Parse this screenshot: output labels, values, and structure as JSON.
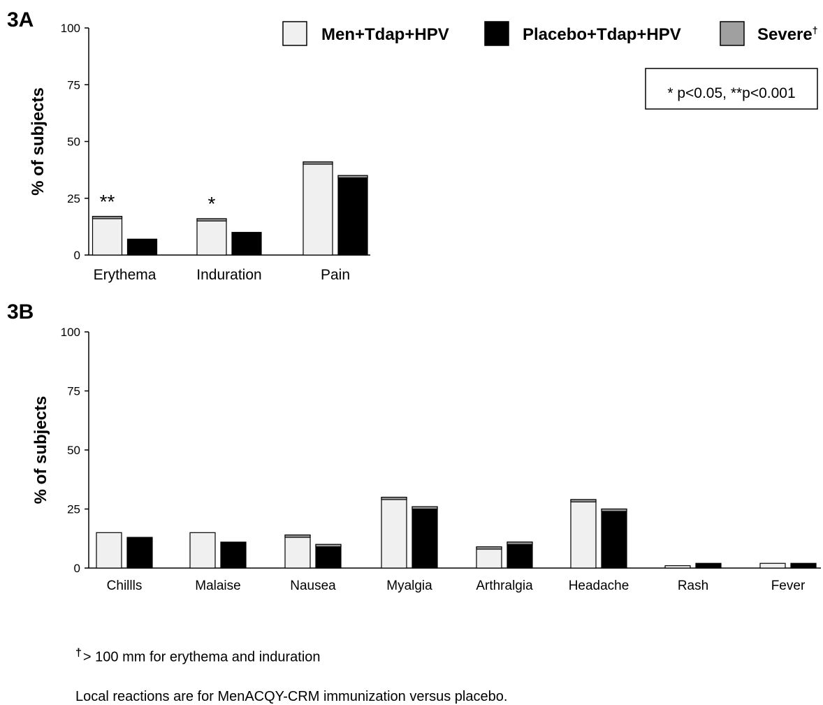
{
  "panels": {
    "a_label": "3A",
    "b_label": "3B"
  },
  "legend": {
    "items": [
      {
        "label": "Men+Tdap+HPV",
        "color": "#f0f0f0"
      },
      {
        "label": "Placebo+Tdap+HPV",
        "color": "#000000"
      },
      {
        "label": "Severe",
        "sup": "†",
        "color": "#a0a0a0"
      }
    ]
  },
  "significance_box": "* p<0.05, **p<0.001",
  "footnotes": {
    "dagger_symbol": "†",
    "dagger_text": "> 100 mm for erythema and induration",
    "local_note": "Local reactions are for MenACQY-CRM immunization versus placebo."
  },
  "colors": {
    "men": "#f0f0f0",
    "placebo": "#000000",
    "severe": "#a0a0a0"
  },
  "chart_data": [
    {
      "type": "bar",
      "panel": "3A",
      "categories": [
        "Erythema",
        "Induration",
        "Pain"
      ],
      "series": [
        {
          "name": "Men+Tdap+HPV",
          "values": [
            17,
            16,
            41
          ],
          "severe": [
            1,
            1,
            1
          ]
        },
        {
          "name": "Placebo+Tdap+HPV",
          "values": [
            7,
            10,
            35
          ],
          "severe": [
            0,
            0,
            1
          ]
        }
      ],
      "annotations": [
        "**",
        "*",
        ""
      ],
      "ylabel": "% of subjects",
      "ylim": [
        0,
        100
      ],
      "yticks": [
        0,
        25,
        50,
        75,
        100
      ]
    },
    {
      "type": "bar",
      "panel": "3B",
      "categories": [
        "Chillls",
        "Malaise",
        "Nausea",
        "Myalgia",
        "Arthralgia",
        "Headache",
        "Rash",
        "Fever"
      ],
      "series": [
        {
          "name": "Men+Tdap+HPV",
          "values": [
            15,
            15,
            14,
            30,
            9,
            29,
            1,
            2
          ],
          "severe": [
            0,
            0,
            1,
            1,
            1,
            1,
            0,
            0
          ]
        },
        {
          "name": "Placebo+Tdap+HPV",
          "values": [
            13,
            11,
            10,
            26,
            11,
            25,
            2,
            2
          ],
          "severe": [
            0,
            0,
            1,
            1,
            1,
            1,
            0,
            0
          ]
        }
      ],
      "ylabel": "% of subjects",
      "ylim": [
        0,
        100
      ],
      "yticks": [
        0,
        25,
        50,
        75,
        100
      ]
    }
  ]
}
